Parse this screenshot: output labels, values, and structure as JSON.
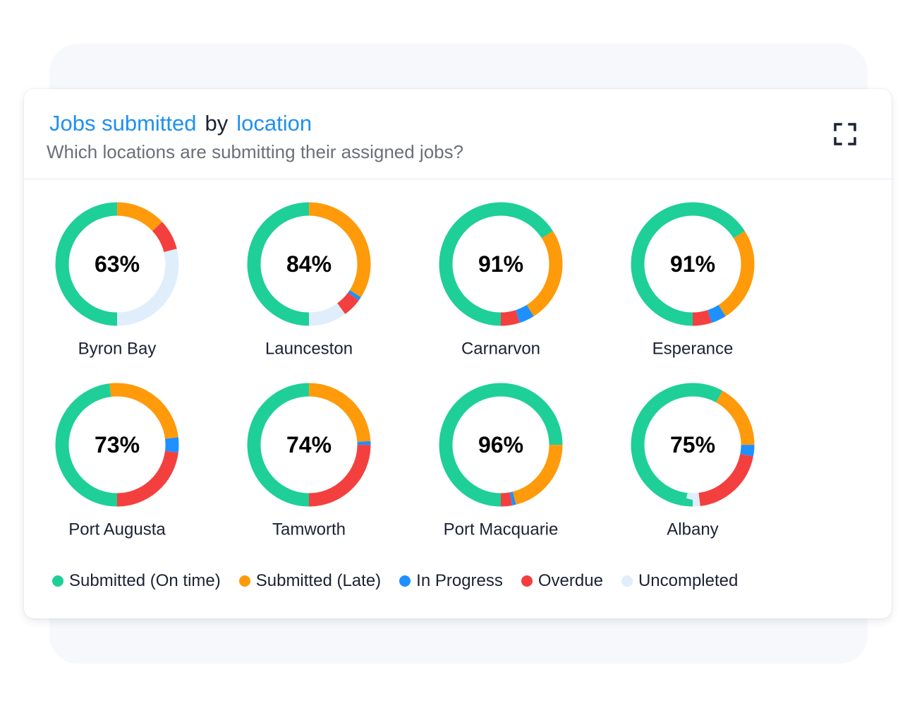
{
  "header": {
    "title_part1": "Jobs submitted",
    "title_part2": "by",
    "title_part3": "location",
    "subtitle": "Which locations are submitting their assigned jobs?",
    "expand_icon": "expand-icon"
  },
  "colors": {
    "on_time": "#1ecf98",
    "late": "#ff9a0a",
    "in_progress": "#1e90ff",
    "overdue": "#f43f3f",
    "uncompleted": "#dfeefa"
  },
  "chart_data": {
    "type": "donut",
    "segments_order": [
      "Submitted (On time)",
      "Submitted (Late)",
      "In Progress",
      "Overdue",
      "Uncompleted"
    ],
    "items": [
      {
        "location": "Byron Bay",
        "label": "63%",
        "values": [
          50,
          13,
          0,
          8,
          29
        ]
      },
      {
        "location": "Launceston",
        "label": "84%",
        "values": [
          50,
          34,
          1,
          5,
          10
        ]
      },
      {
        "location": "Carnarvon",
        "label": "91%",
        "values": [
          66,
          25,
          4,
          5,
          0
        ]
      },
      {
        "location": "Esperance",
        "label": "91%",
        "values": [
          66,
          25,
          4,
          5,
          0
        ]
      },
      {
        "location": "Port Augusta",
        "label": "73%",
        "values": [
          48,
          25,
          4,
          23,
          0
        ]
      },
      {
        "location": "Tamworth",
        "label": "74%",
        "values": [
          50,
          24,
          1,
          25,
          0
        ]
      },
      {
        "location": "Port Macquarie",
        "label": "96%",
        "values": [
          75,
          21,
          1,
          3,
          0
        ]
      },
      {
        "location": "Albany",
        "label": "75%",
        "values": [
          58,
          17,
          3,
          20,
          2
        ]
      }
    ]
  },
  "legend": [
    {
      "label": "Submitted (On time)",
      "color": "#1ecf98"
    },
    {
      "label": "Submitted (Late)",
      "color": "#ff9a0a"
    },
    {
      "label": "In Progress",
      "color": "#1e90ff"
    },
    {
      "label": "Overdue",
      "color": "#f43f3f"
    },
    {
      "label": "Uncompleted",
      "color": "#dfeefa"
    }
  ]
}
